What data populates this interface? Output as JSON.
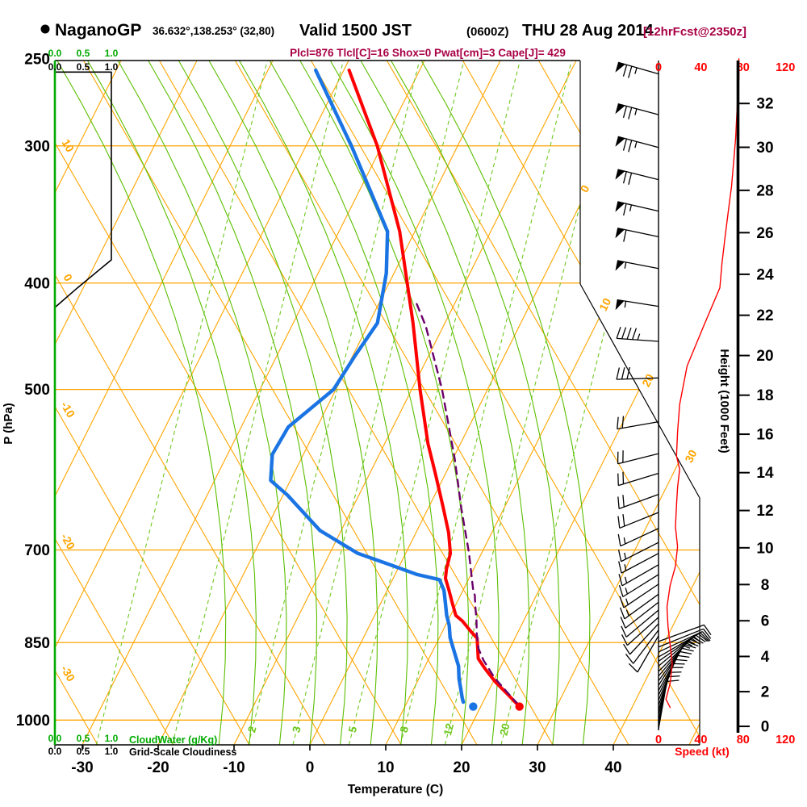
{
  "header": {
    "station": "NaganoGP",
    "coords": "36.632°,138.253° (32,80)",
    "valid": "Valid 1500 JST",
    "valid_utc": "(0600Z)",
    "valid_date": "THU 28 Aug 2014",
    "forecast": "[12hrFcst@2350z]",
    "stats": "Plcl=876 Tlcl[C]=16 Shox=0 Pwat[cm]=3 Cape[J]= 429"
  },
  "axes": {
    "pressure_title": "P (hPa)",
    "temp_title": "Temperature (C)",
    "height_title": "Height (1000 Feet)",
    "speed_title": "Speed (kt)",
    "cloudwater_title": "CloudWater (g/Kg)",
    "cloudiness_title": "Grid-Scale Cloudiness",
    "pressure_ticks": [
      250,
      300,
      400,
      500,
      700,
      850,
      1000
    ],
    "temp_ticks": [
      -30,
      -20,
      -10,
      0,
      10,
      20,
      30,
      40
    ],
    "height_ticks": [
      0,
      2,
      4,
      6,
      8,
      10,
      12,
      14,
      16,
      18,
      20,
      22,
      24,
      26,
      28,
      30,
      32
    ],
    "speed_ticks": [
      0,
      40,
      80,
      120
    ],
    "cloud_scale": [
      "0.0",
      "0.5",
      "1.0"
    ]
  },
  "colors": {
    "orange": "#FFA500",
    "green_axis": "#00AA00",
    "green_moist": "#5BBE00",
    "green_mix": "#6EC81E",
    "red": "#FF0000",
    "blue": "#1B74E4",
    "purple": "#6A006A",
    "maroon": "#A80045",
    "black": "#000000"
  },
  "chart_data": {
    "type": "skewt-log-p sounding",
    "title": "NaganoGP Valid 1500 JST (0600Z) THU 28 Aug 2014 [12hrFcst@2350z]",
    "pressure_range_hPa": [
      250,
      1030
    ],
    "temperature_axis_C": [
      -30,
      40
    ],
    "grid": {
      "isobars": [
        300,
        400,
        500,
        700,
        850,
        1000
      ],
      "isotherms": {
        "min": -80,
        "max": 50,
        "step": 10
      },
      "dry_adiabats": {
        "min": -60,
        "max": 90,
        "step": 10
      },
      "moist_adiabats": {
        "min": -12,
        "max": 36,
        "step": 4
      },
      "mixing_ratio_lines": [
        0.5,
        1,
        2,
        3,
        5,
        8,
        12,
        20
      ],
      "mixing_ratio_labeled": [
        2,
        3,
        5,
        8,
        12,
        20
      ],
      "isotherm_edge_labels": [
        0,
        10,
        20,
        30
      ],
      "dry_adiabat_labels": [
        10,
        0,
        -10,
        -20,
        -30
      ]
    },
    "temperature_profile": [
      [
        256,
        -39.3
      ],
      [
        300,
        -30.6
      ],
      [
        359,
        -22.0
      ],
      [
        435,
        -14.2
      ],
      [
        500,
        -8.9
      ],
      [
        560,
        -4.3
      ],
      [
        597,
        -1.3
      ],
      [
        640,
        1.9
      ],
      [
        675,
        4.3
      ],
      [
        705,
        5.9
      ],
      [
        728,
        6.4
      ],
      [
        743,
        6.9
      ],
      [
        761,
        8.1
      ],
      [
        782,
        9.4
      ],
      [
        803,
        10.7
      ],
      [
        813,
        12.0
      ],
      [
        831,
        13.8
      ],
      [
        842,
        15.0
      ],
      [
        879,
        16.5
      ],
      [
        897,
        18.0
      ],
      [
        922,
        20.2
      ],
      [
        947,
        22.7
      ],
      [
        972,
        25.1
      ]
    ],
    "dewpoint_profile": [
      [
        256,
        -43.7
      ],
      [
        300,
        -34.0
      ],
      [
        359,
        -23.6
      ],
      [
        392,
        -21.0
      ],
      [
        435,
        -18.9
      ],
      [
        466,
        -19.7
      ],
      [
        500,
        -20.3
      ],
      [
        541,
        -23.8
      ],
      [
        573,
        -24.1
      ],
      [
        605,
        -22.6
      ],
      [
        624,
        -19.4
      ],
      [
        672,
        -12.8
      ],
      [
        705,
        -6.3
      ],
      [
        722,
        -1.3
      ],
      [
        737,
        2.9
      ],
      [
        745,
        6.2
      ],
      [
        762,
        7.5
      ],
      [
        782,
        8.5
      ],
      [
        803,
        9.5
      ],
      [
        820,
        10.5
      ],
      [
        841,
        11.4
      ],
      [
        870,
        13.1
      ],
      [
        893,
        14.4
      ],
      [
        917,
        15.3
      ],
      [
        939,
        16.3
      ],
      [
        955,
        17.0
      ],
      [
        963,
        17.4
      ]
    ],
    "parcel_profile": [
      [
        968,
        24.8
      ],
      [
        944,
        22.6
      ],
      [
        915,
        19.9
      ],
      [
        882,
        17.3
      ],
      [
        861,
        15.9
      ],
      [
        835,
        14.7
      ],
      [
        810,
        13.7
      ],
      [
        786,
        12.6
      ],
      [
        770,
        11.9
      ],
      [
        761,
        11.3
      ],
      [
        704,
        8.3
      ],
      [
        642,
        4.4
      ],
      [
        579,
        0.3
      ],
      [
        500,
        -6.0
      ],
      [
        438,
        -12.3
      ],
      [
        417,
        -15.1
      ]
    ],
    "surface": {
      "temp_dot": {
        "p": 972,
        "t": 25.1
      },
      "dewpoint_dot": {
        "p": 972,
        "t": 19.0
      }
    },
    "cloudiness_profile": [
      [
        257,
        0.0
      ],
      [
        257,
        1.0
      ],
      [
        381,
        1.0
      ],
      [
        404,
        0.4
      ],
      [
        421,
        0.0
      ]
    ],
    "cloudwater_profile": [
      [
        257,
        0.0
      ],
      [
        1013,
        0.0
      ]
    ],
    "wind_speed_profile_kt": [
      [
        250,
        76
      ],
      [
        260,
        76
      ],
      [
        270,
        75
      ],
      [
        282,
        74
      ],
      [
        295,
        73
      ],
      [
        311,
        71
      ],
      [
        327,
        69
      ],
      [
        344,
        66
      ],
      [
        363,
        63
      ],
      [
        384,
        60
      ],
      [
        404,
        58
      ],
      [
        437,
        43
      ],
      [
        476,
        27
      ],
      [
        516,
        20
      ],
      [
        547,
        18
      ],
      [
        575,
        17
      ],
      [
        591,
        20
      ],
      [
        614,
        18
      ],
      [
        637,
        17
      ],
      [
        667,
        16
      ],
      [
        695,
        18
      ],
      [
        724,
        16
      ],
      [
        754,
        11
      ],
      [
        789,
        8
      ],
      [
        822,
        9
      ],
      [
        854,
        11
      ],
      [
        889,
        13
      ],
      [
        926,
        11
      ],
      [
        957,
        7
      ],
      [
        974,
        11
      ]
    ],
    "wind_barbs": [
      [
        258,
        164,
        76
      ],
      [
        281,
        165,
        75
      ],
      [
        301,
        165,
        73
      ],
      [
        322,
        166,
        70
      ],
      [
        344,
        167,
        66
      ],
      [
        363,
        168,
        62
      ],
      [
        388,
        169,
        57
      ],
      [
        420,
        171,
        55
      ],
      [
        452,
        176,
        44
      ],
      [
        488,
        182,
        29
      ],
      [
        535,
        190,
        22
      ],
      [
        572,
        194,
        19
      ],
      [
        596,
        197,
        20
      ],
      [
        623,
        200,
        19
      ],
      [
        647,
        202,
        18
      ],
      [
        669,
        205,
        17
      ],
      [
        689,
        207,
        15
      ],
      [
        705,
        208,
        15
      ],
      [
        722,
        210,
        15
      ],
      [
        737,
        212,
        14
      ],
      [
        752,
        214,
        13
      ],
      [
        768,
        216,
        13
      ],
      [
        781,
        218,
        12
      ],
      [
        794,
        220,
        12
      ],
      [
        806,
        222,
        11
      ],
      [
        817,
        227,
        10
      ],
      [
        828,
        233,
        10
      ],
      [
        838,
        240,
        10
      ],
      [
        848,
        20,
        9
      ],
      [
        858,
        22,
        10
      ],
      [
        867,
        25,
        11
      ],
      [
        876,
        30,
        12
      ],
      [
        884,
        35,
        13
      ],
      [
        893,
        40,
        13
      ],
      [
        903,
        45,
        14
      ],
      [
        912,
        50,
        13
      ],
      [
        921,
        54,
        13
      ],
      [
        930,
        58,
        12
      ],
      [
        940,
        61,
        12
      ],
      [
        949,
        64,
        12
      ],
      [
        959,
        67,
        11
      ],
      [
        969,
        70,
        11
      ],
      [
        979,
        73,
        10
      ],
      [
        988,
        75,
        10
      ],
      [
        999,
        77,
        10
      ],
      [
        1009,
        79,
        9
      ],
      [
        1019,
        80,
        9
      ]
    ]
  }
}
